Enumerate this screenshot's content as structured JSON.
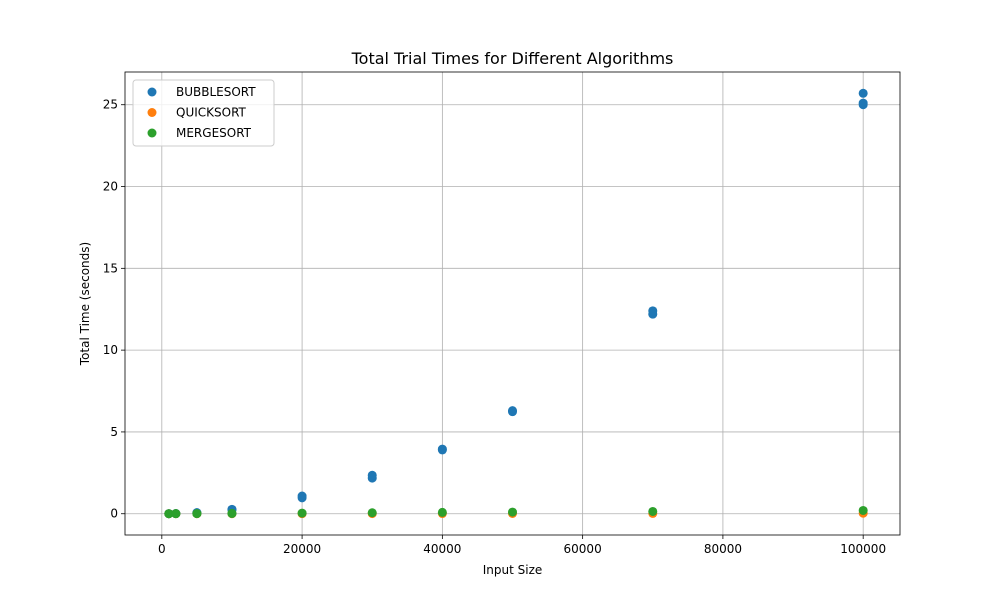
{
  "chart_data": {
    "type": "scatter",
    "title": "Total Trial Times for Different Algorithms",
    "xlabel": "Input Size",
    "ylabel": "Total Time (seconds)",
    "xlim": [
      -5250,
      105250
    ],
    "ylim": [
      -1.3,
      27.0
    ],
    "xticks": [
      0,
      20000,
      40000,
      60000,
      80000,
      100000
    ],
    "yticks": [
      0,
      5,
      10,
      15,
      20,
      25
    ],
    "grid": true,
    "legend_position": "upper-left",
    "series": [
      {
        "name": "BUBBLESORT",
        "color": "#1f77b4",
        "points": [
          [
            1000,
            0.003
          ],
          [
            1000,
            0.002
          ],
          [
            2000,
            0.01
          ],
          [
            2000,
            0.012
          ],
          [
            5000,
            0.06
          ],
          [
            5000,
            0.065
          ],
          [
            10000,
            0.24
          ],
          [
            10000,
            0.27
          ],
          [
            20000,
            0.97
          ],
          [
            20000,
            1.08
          ],
          [
            30000,
            2.18
          ],
          [
            30000,
            2.35
          ],
          [
            40000,
            3.9
          ],
          [
            40000,
            3.95
          ],
          [
            50000,
            6.24
          ],
          [
            50000,
            6.3
          ],
          [
            70000,
            12.2
          ],
          [
            70000,
            12.4
          ],
          [
            100000,
            25.0
          ],
          [
            100000,
            25.1
          ],
          [
            100000,
            25.7
          ]
        ]
      },
      {
        "name": "QUICKSORT",
        "color": "#ff7f0e",
        "points": [
          [
            1000,
            0.0
          ],
          [
            2000,
            0.0
          ],
          [
            5000,
            0.001
          ],
          [
            10000,
            0.002
          ],
          [
            20000,
            0.005
          ],
          [
            30000,
            0.008
          ],
          [
            40000,
            0.011
          ],
          [
            50000,
            0.014
          ],
          [
            70000,
            0.02
          ],
          [
            100000,
            0.03
          ]
        ]
      },
      {
        "name": "MERGESORT",
        "color": "#2ca02c",
        "points": [
          [
            1000,
            0.001
          ],
          [
            1000,
            0.002
          ],
          [
            2000,
            0.003
          ],
          [
            2000,
            0.004
          ],
          [
            5000,
            0.008
          ],
          [
            5000,
            0.01
          ],
          [
            10000,
            0.018
          ],
          [
            10000,
            0.02
          ],
          [
            20000,
            0.038
          ],
          [
            30000,
            0.06
          ],
          [
            40000,
            0.08
          ],
          [
            50000,
            0.1
          ],
          [
            70000,
            0.14
          ],
          [
            100000,
            0.2
          ]
        ]
      }
    ]
  }
}
